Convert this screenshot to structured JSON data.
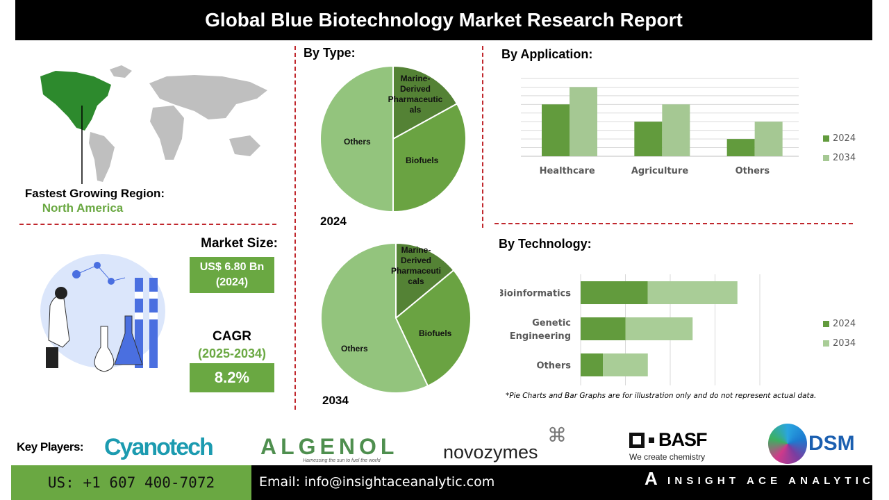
{
  "title": "Global Blue Biotechnology Market Research Report",
  "region": {
    "label": "Fastest Growing Region:",
    "value": "North America"
  },
  "market_size": {
    "label": "Market Size:",
    "value": "US$ 6.80 Bn",
    "year": "(2024)"
  },
  "cagr": {
    "label": "CAGR",
    "period": "(2025-2034)",
    "value": "8.2%"
  },
  "colors": {
    "dark_green": "#548235",
    "mid_green": "#6aa342",
    "light_green": "#93c47d",
    "bar_2024": "#629b3d",
    "bar_2034": "#a5c893",
    "accent_red": "#c0272d",
    "box_green": "#6aa842"
  },
  "sections": {
    "type": "By Type:",
    "application": "By Application:",
    "technology": "By Technology:"
  },
  "chart_data": [
    {
      "type": "pie",
      "title": "2024",
      "slices": [
        {
          "label": "Marine-Derived Pharmaceuticals",
          "label_lines": [
            "Marine-",
            "Derived",
            "Pharmaceutic",
            "als"
          ],
          "value": 17
        },
        {
          "label": "Biofuels",
          "value": 33
        },
        {
          "label": "Others",
          "value": 50
        }
      ]
    },
    {
      "type": "pie",
      "title": "2034",
      "slices": [
        {
          "label": "Marine-Derived Pharmaceuticals",
          "label_lines": [
            "Marine-",
            "Derived",
            "Pharmaceuti",
            "cals"
          ],
          "value": 14
        },
        {
          "label": "Biofuels",
          "value": 29
        },
        {
          "label": "Others",
          "value": 57
        }
      ]
    },
    {
      "type": "bar",
      "categories": [
        "Healthcare",
        "Agriculture",
        "Others"
      ],
      "series": [
        {
          "name": "2024",
          "values": [
            6,
            4,
            2
          ]
        },
        {
          "name": "2034",
          "values": [
            8,
            6,
            4
          ]
        }
      ],
      "ylim": [
        0,
        9
      ],
      "grid": true,
      "legend": "right"
    },
    {
      "type": "bar",
      "orientation": "horizontal",
      "stacked": true,
      "categories": [
        "Bioinformatics",
        "Genetic Engineering",
        "Others"
      ],
      "category_lines": [
        [
          "Bioinformatics"
        ],
        [
          "Genetic",
          "Engineering"
        ],
        [
          "Others"
        ]
      ],
      "series": [
        {
          "name": "2024",
          "values": [
            1.5,
            1,
            0.5
          ]
        },
        {
          "name": "2034",
          "values": [
            2,
            1.5,
            1
          ]
        }
      ],
      "xlim": [
        0,
        4
      ],
      "grid": true,
      "legend": "right"
    }
  ],
  "disclaimer": "*Pie Charts and Bar Graphs are for illustration only and do not represent actual data.",
  "key_players": {
    "label": "Key Players:",
    "logos": [
      "Cyanotech",
      "ALGENOL",
      "novozymes",
      "BASF",
      "DSM"
    ],
    "algenol_tagline": "Harnessing the sun to fuel the world",
    "basf_tagline": "We create chemistry"
  },
  "footer": {
    "phone": "US: +1 607 400-7072",
    "email": "Email: info@insightaceanalytic.com",
    "brand": "INSIGHT ACE ANALYTIC"
  }
}
